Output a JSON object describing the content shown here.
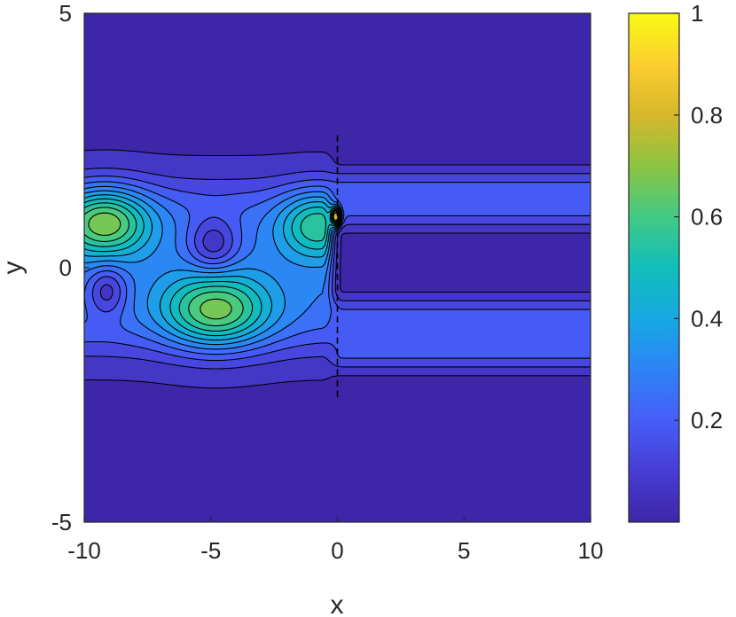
{
  "chart_data": {
    "type": "contour",
    "title": "",
    "xlabel": "x",
    "ylabel": "y",
    "xlim": [
      -10,
      10
    ],
    "ylim": [
      -5,
      5
    ],
    "x_ticks": [
      -10,
      -5,
      0,
      5,
      10
    ],
    "y_ticks": [
      -5,
      0,
      5
    ],
    "colorbar": {
      "colormap": "parula",
      "limits": [
        0,
        1
      ],
      "ticks": [
        0.2,
        0.4,
        0.6,
        0.8,
        1
      ]
    },
    "interface_line": {
      "x": 0,
      "y_range": [
        -2.6,
        2.6
      ],
      "style": "dashed"
    },
    "contour_levels": [
      0.04,
      0.1,
      0.16,
      0.22,
      0.28,
      0.34,
      0.4,
      0.46,
      0.52,
      0.58,
      0.64,
      0.7,
      0.76
    ],
    "features": {
      "maxima": [
        {
          "x": -9.2,
          "y": 0.9,
          "value": 0.74
        },
        {
          "x": -4.8,
          "y": -0.85,
          "value": 0.72
        },
        {
          "x": -0.8,
          "y": 0.85,
          "value": 0.62
        },
        {
          "x": -0.05,
          "y": 1.0,
          "value": 1.0
        }
      ],
      "minima": [
        {
          "x": -4.9,
          "y": 0.45,
          "value": 0.06
        },
        {
          "x": -9.1,
          "y": -0.45,
          "value": 0.08
        }
      ],
      "left_band_y": [
        -2.8,
        2.8
      ],
      "right_channels": [
        {
          "y_center": 1.35,
          "half_width": 0.5,
          "value": 0.14
        },
        {
          "y_center": -1.3,
          "half_width": 0.65,
          "value": 0.14
        }
      ]
    },
    "grid": false,
    "legend": "none"
  }
}
